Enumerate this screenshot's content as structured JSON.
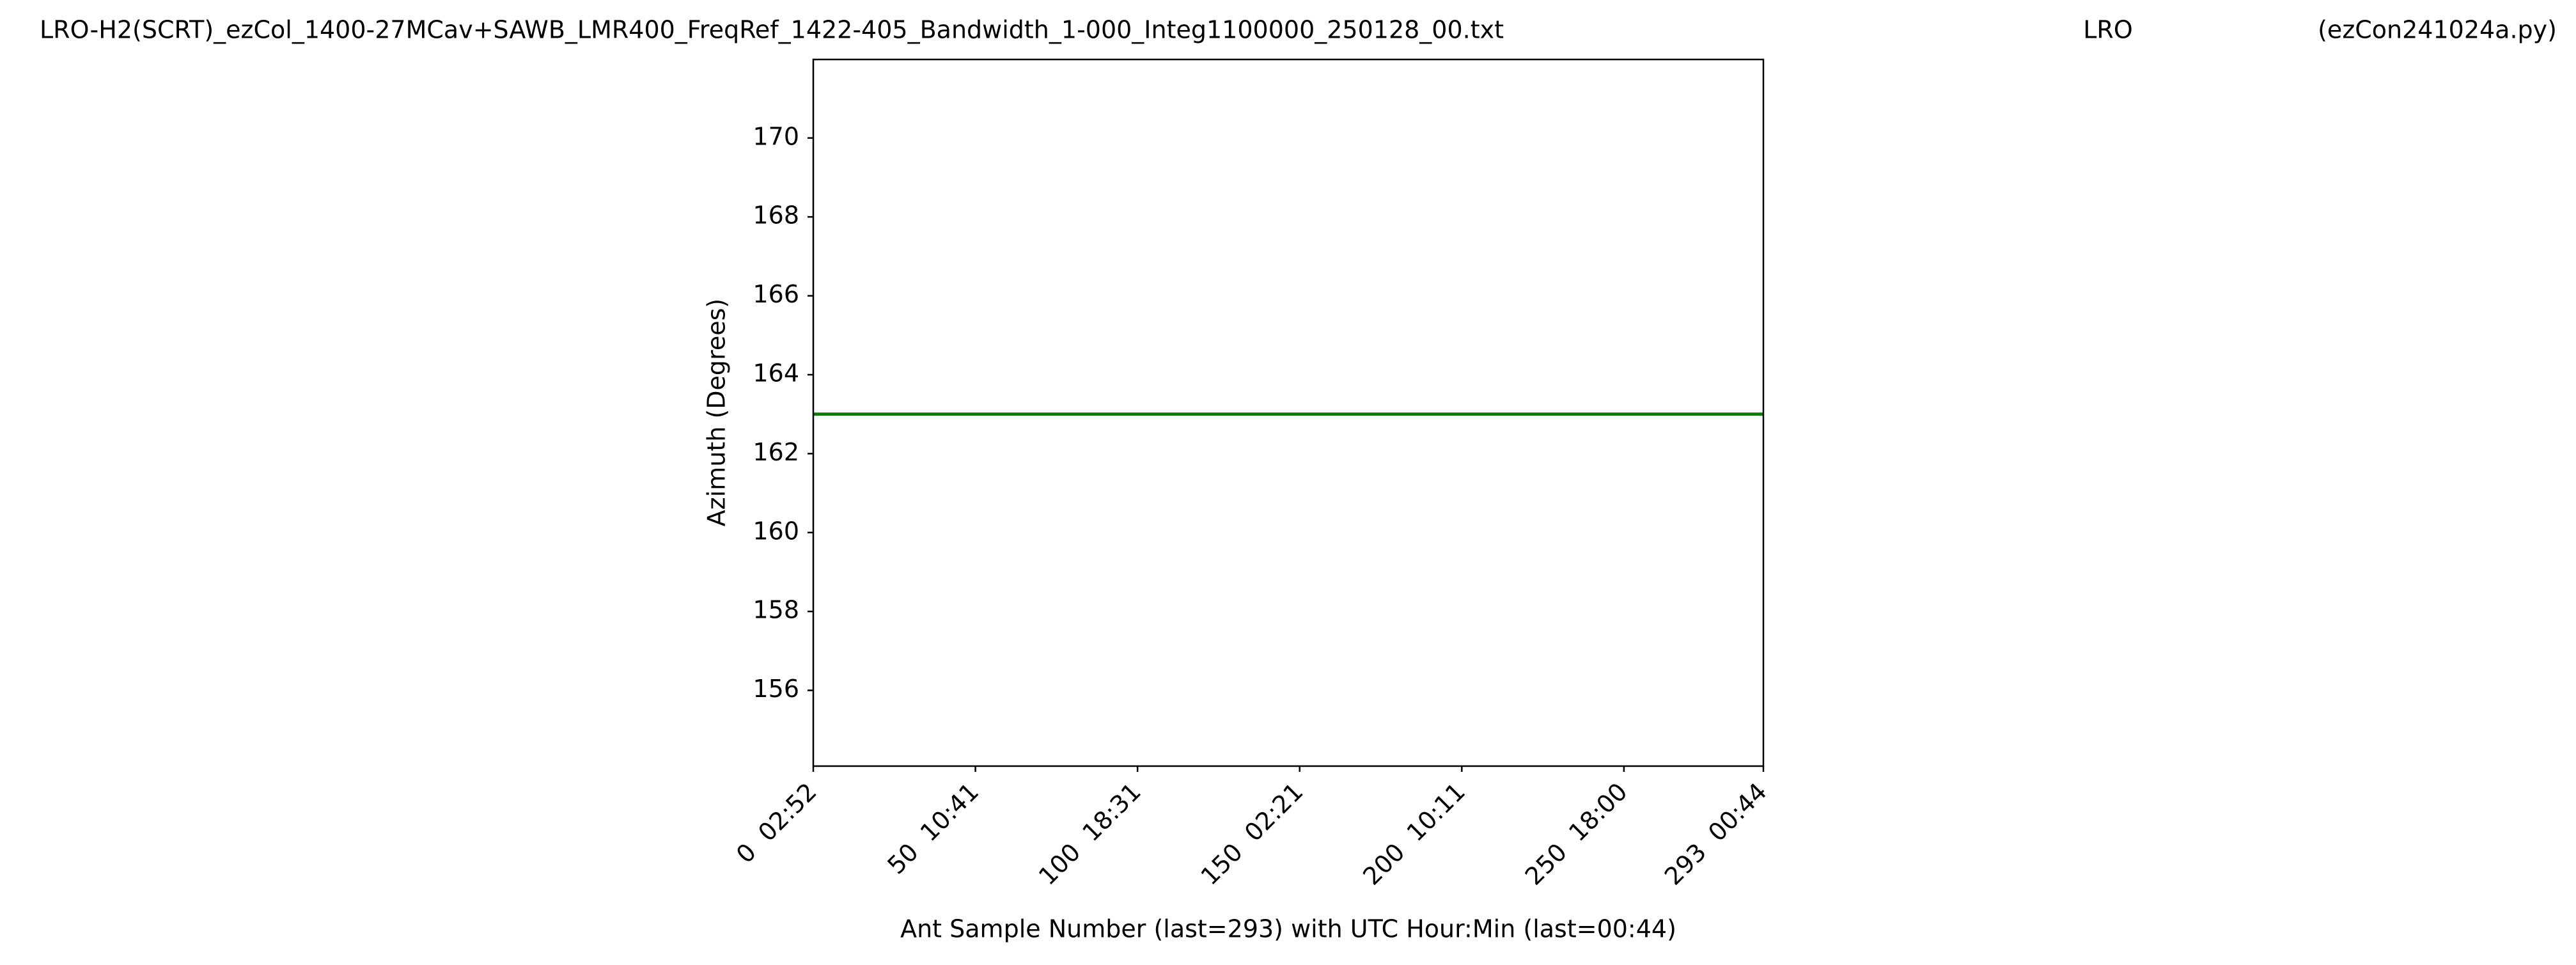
{
  "chart_data": {
    "type": "line",
    "title": "LRO-H2(SCRT)_ezCol_1400-27MCav+SAWB_LMR400_FreqRef_1422-405_Bandwidth_1-000_Integ1100000_250128_00.txt",
    "location": "LRO",
    "script": "(ezCon241024a.py)",
    "x_label": "Ant Sample Number (last=293) with UTC Hour:Min (last=00:44)",
    "y_label": "Azimuth (Degrees)",
    "x": [
      0,
      293
    ],
    "series": [
      {
        "color": "#008000",
        "values": [
          163,
          163
        ]
      }
    ],
    "xlim": [
      0,
      293
    ],
    "ylim": [
      154.08,
      171.99
    ],
    "xticks": [
      {
        "value": 0,
        "label": "0  02:52"
      },
      {
        "value": 50,
        "label": "50  10:41"
      },
      {
        "value": 100,
        "label": "100  18:31"
      },
      {
        "value": 150,
        "label": "150  02:21"
      },
      {
        "value": 200,
        "label": "200  10:11"
      },
      {
        "value": 250,
        "label": "250  18:00"
      },
      {
        "value": 293,
        "label": "293  00:44"
      }
    ],
    "yticks": [
      156,
      158,
      160,
      162,
      164,
      166,
      168,
      170
    ],
    "grid": false
  }
}
